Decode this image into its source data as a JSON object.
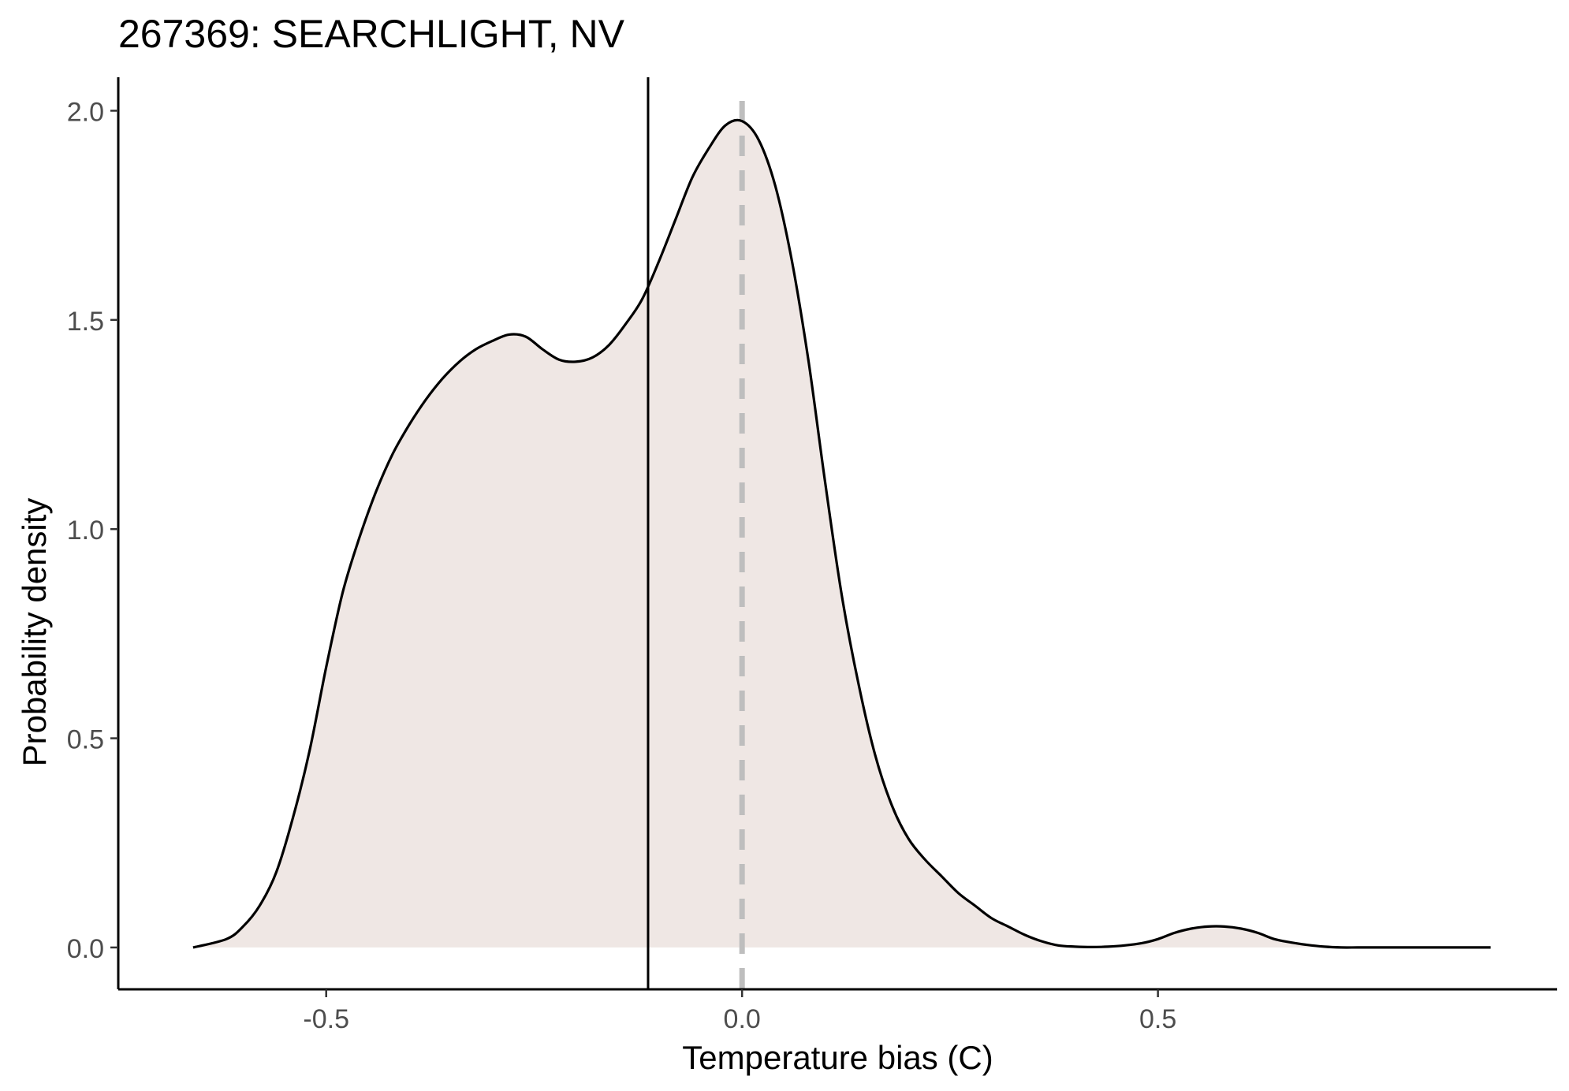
{
  "chart_data": {
    "type": "area",
    "title": "267369: SEARCHLIGHT, NV",
    "xlabel": "Temperature bias (C)",
    "ylabel": "Probability density",
    "xlim": [
      -0.75,
      0.98
    ],
    "ylim": [
      -0.1,
      2.08
    ],
    "x_ticks": [
      -0.5,
      0.0,
      0.5
    ],
    "x_tick_labels": [
      "-0.5",
      "0.0",
      "0.5"
    ],
    "y_ticks": [
      0.0,
      0.5,
      1.0,
      1.5,
      2.0
    ],
    "y_tick_labels": [
      "0.0",
      "0.5",
      "1.0",
      "1.5",
      "2.0"
    ],
    "grid": false,
    "legend": "none",
    "fill_color": "#efe7e4",
    "line_color": "#000000",
    "reference_line": {
      "x": -0.113,
      "style": "solid",
      "color": "#000000"
    },
    "zero_line": {
      "x": 0.0,
      "style": "dashed",
      "color": "#bebebe"
    },
    "series": [
      {
        "x": [
          -0.66,
          -0.62,
          -0.6,
          -0.58,
          -0.56,
          -0.54,
          -0.52,
          -0.5,
          -0.48,
          -0.46,
          -0.44,
          -0.42,
          -0.4,
          -0.38,
          -0.36,
          -0.34,
          -0.32,
          -0.3,
          -0.28,
          -0.26,
          -0.24,
          -0.22,
          -0.2,
          -0.18,
          -0.16,
          -0.14,
          -0.12,
          -0.1,
          -0.08,
          -0.06,
          -0.04,
          -0.02,
          0.0,
          0.02,
          0.04,
          0.06,
          0.08,
          0.1,
          0.12,
          0.14,
          0.16,
          0.18,
          0.2,
          0.22,
          0.24,
          0.26,
          0.28,
          0.3,
          0.32,
          0.34,
          0.36,
          0.38,
          0.4,
          0.42,
          0.44,
          0.46,
          0.48,
          0.5,
          0.52,
          0.54,
          0.56,
          0.58,
          0.6,
          0.62,
          0.64,
          0.66,
          0.68,
          0.7,
          0.72,
          0.74,
          0.76,
          0.78,
          0.8,
          0.82,
          0.84,
          0.86,
          0.88,
          0.9
        ],
        "y": [
          0.0,
          0.02,
          0.05,
          0.1,
          0.18,
          0.31,
          0.47,
          0.67,
          0.85,
          0.98,
          1.09,
          1.18,
          1.25,
          1.31,
          1.36,
          1.4,
          1.43,
          1.45,
          1.465,
          1.46,
          1.43,
          1.405,
          1.4,
          1.41,
          1.44,
          1.49,
          1.55,
          1.64,
          1.74,
          1.84,
          1.91,
          1.965,
          1.975,
          1.93,
          1.82,
          1.64,
          1.4,
          1.11,
          0.84,
          0.63,
          0.46,
          0.34,
          0.26,
          0.21,
          0.17,
          0.13,
          0.1,
          0.07,
          0.05,
          0.03,
          0.015,
          0.005,
          0.002,
          0.001,
          0.002,
          0.005,
          0.01,
          0.02,
          0.035,
          0.045,
          0.05,
          0.05,
          0.045,
          0.035,
          0.02,
          0.012,
          0.006,
          0.002,
          0.0,
          0.0,
          0.0,
          0.0,
          0.0,
          0.0,
          0.0,
          0.0,
          0.0,
          0.0
        ]
      }
    ]
  }
}
